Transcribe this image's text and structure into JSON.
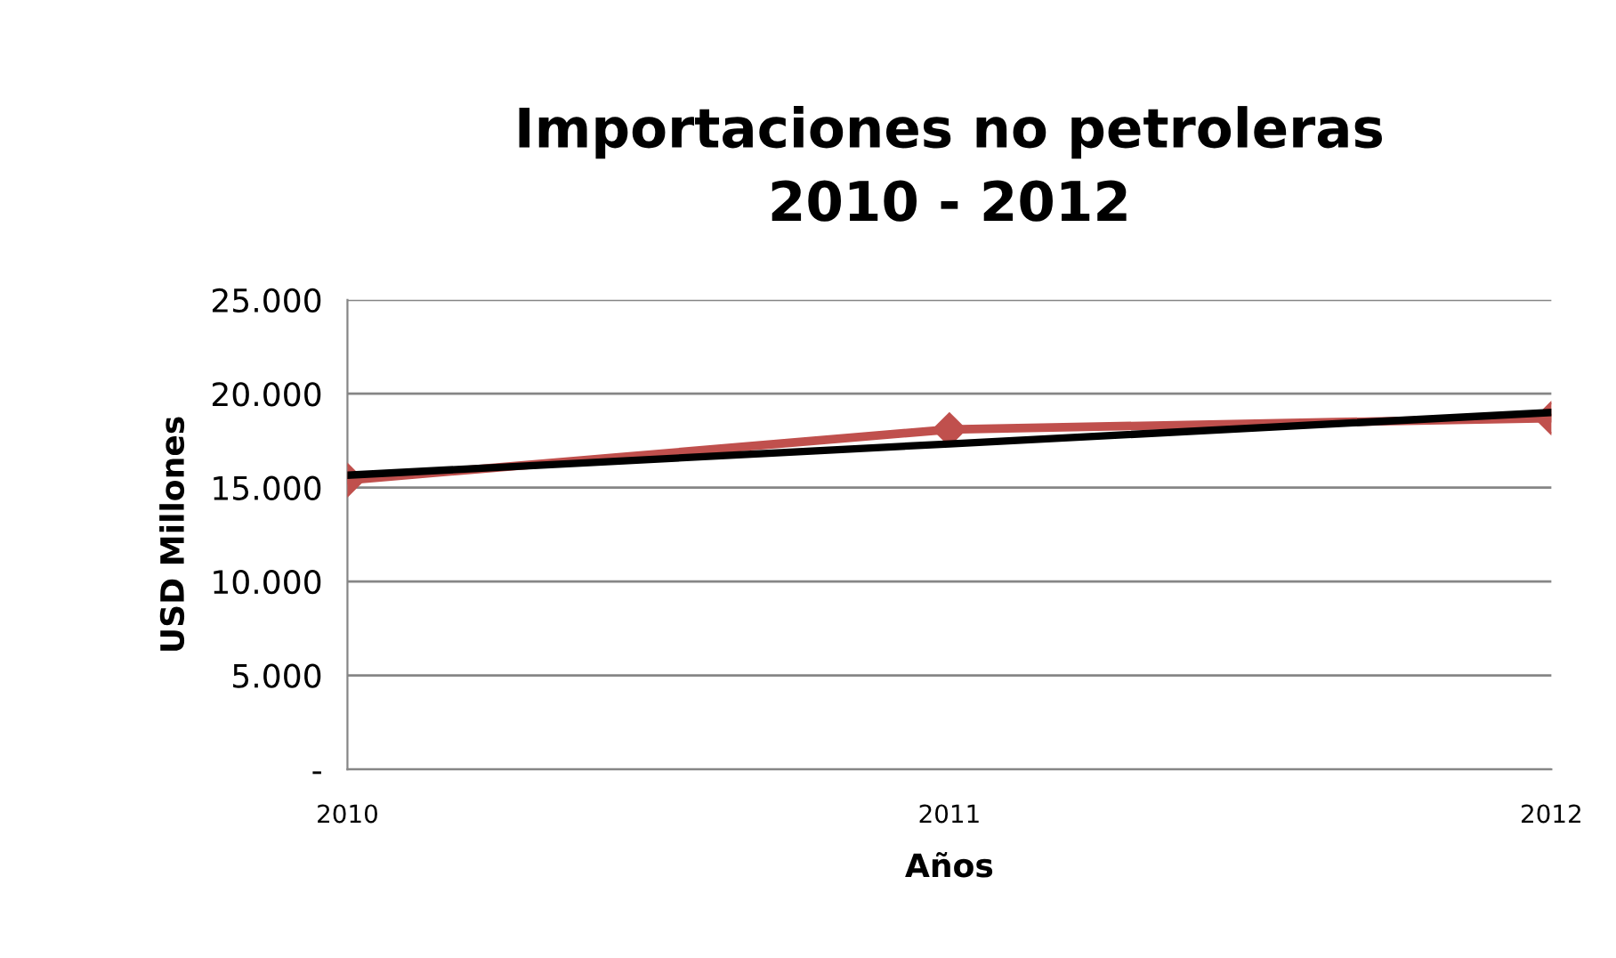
{
  "chart_data": {
    "type": "line",
    "title": "Importaciones no petroleras\n2010 - 2012",
    "xlabel": "Años",
    "ylabel": "USD Millones",
    "categories": [
      "2010",
      "2011",
      "2012"
    ],
    "series": [
      {
        "color": "#c0504d",
        "values": [
          15400,
          18100,
          18700
        ],
        "marker": "diamond"
      },
      {
        "color": "#000000",
        "values": [
          15660,
          17330,
          19000
        ],
        "marker": "none"
      }
    ],
    "ylim": [
      0,
      25000
    ],
    "yticks": [
      {
        "value": 0,
        "label": "-"
      },
      {
        "value": 5000,
        "label": "5.000"
      },
      {
        "value": 10000,
        "label": "10.000"
      },
      {
        "value": 15000,
        "label": "15.000"
      },
      {
        "value": 20000,
        "label": "20.000"
      },
      {
        "value": 25000,
        "label": "25.000"
      }
    ],
    "grid": "y",
    "legend": false
  }
}
